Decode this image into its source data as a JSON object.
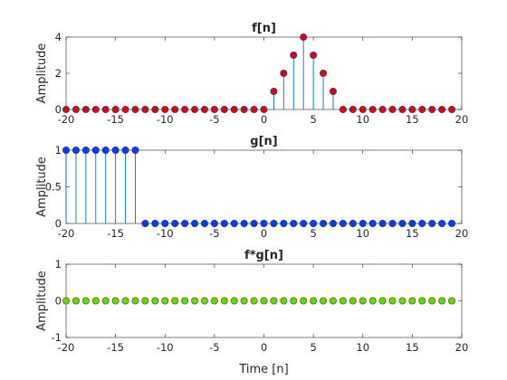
{
  "chart_data": [
    {
      "type": "stem",
      "title": "f[n]",
      "xlabel": "",
      "ylabel": "Amplitude",
      "xlim": [
        -20,
        20
      ],
      "ylim": [
        0,
        4
      ],
      "xticks": [
        "-20",
        "-15",
        "-10",
        "-5",
        "0",
        "5",
        "10",
        "15",
        "20"
      ],
      "yticks": [
        "0",
        "2",
        "4"
      ],
      "x": [
        -20,
        -19,
        -18,
        -17,
        -16,
        -15,
        -14,
        -13,
        -12,
        -11,
        -10,
        -9,
        -8,
        -7,
        -6,
        -5,
        -4,
        -3,
        -2,
        -1,
        0,
        1,
        2,
        3,
        4,
        5,
        6,
        7,
        8,
        9,
        10,
        11,
        12,
        13,
        14,
        15,
        16,
        17,
        18,
        19
      ],
      "values": [
        0,
        0,
        0,
        0,
        0,
        0,
        0,
        0,
        0,
        0,
        0,
        0,
        0,
        0,
        0,
        0,
        0,
        0,
        0,
        0,
        0,
        1,
        2,
        3,
        4,
        3,
        2,
        1,
        0,
        0,
        0,
        0,
        0,
        0,
        0,
        0,
        0,
        0,
        0,
        0
      ],
      "marker_face": "#e00000",
      "marker_edge": "#2a3a9a",
      "stem_color": "#0072bd"
    },
    {
      "type": "stem",
      "title": "g[n]",
      "xlabel": "",
      "ylabel": "Amplitude",
      "xlim": [
        -20,
        20
      ],
      "ylim": [
        0,
        1
      ],
      "xticks": [
        "-20",
        "-15",
        "-10",
        "-5",
        "0",
        "5",
        "10",
        "15",
        "20"
      ],
      "yticks": [
        "0",
        "0.5",
        "1"
      ],
      "x": [
        -20,
        -19,
        -18,
        -17,
        -16,
        -15,
        -14,
        -13,
        -12,
        -11,
        -10,
        -9,
        -8,
        -7,
        -6,
        -5,
        -4,
        -3,
        -2,
        -1,
        0,
        1,
        2,
        3,
        4,
        5,
        6,
        7,
        8,
        9,
        10,
        11,
        12,
        13,
        14,
        15,
        16,
        17,
        18,
        19
      ],
      "values": [
        1,
        1,
        1,
        1,
        1,
        1,
        1,
        1,
        0,
        0,
        0,
        0,
        0,
        0,
        0,
        0,
        0,
        0,
        0,
        0,
        0,
        0,
        0,
        0,
        0,
        0,
        0,
        0,
        0,
        0,
        0,
        0,
        0,
        0,
        0,
        0,
        0,
        0,
        0,
        0
      ],
      "marker_face": "#0a3cf0",
      "marker_edge": "#1a2a9a",
      "stem_color": "#0072bd"
    },
    {
      "type": "stem",
      "title": "f*g[n]",
      "xlabel": "Time [n]",
      "ylabel": "Amplitude",
      "xlim": [
        -20,
        20
      ],
      "ylim": [
        -1,
        1
      ],
      "xticks": [
        "-20",
        "-15",
        "-10",
        "-5",
        "0",
        "5",
        "10",
        "15",
        "20"
      ],
      "yticks": [
        "-1",
        "0",
        "1"
      ],
      "x": [
        -20,
        -19,
        -18,
        -17,
        -16,
        -15,
        -14,
        -13,
        -12,
        -11,
        -10,
        -9,
        -8,
        -7,
        -6,
        -5,
        -4,
        -3,
        -2,
        -1,
        0,
        1,
        2,
        3,
        4,
        5,
        6,
        7,
        8,
        9,
        10,
        11,
        12,
        13,
        14,
        15,
        16,
        17,
        18,
        19
      ],
      "values": [
        0,
        0,
        0,
        0,
        0,
        0,
        0,
        0,
        0,
        0,
        0,
        0,
        0,
        0,
        0,
        0,
        0,
        0,
        0,
        0,
        0,
        0,
        0,
        0,
        0,
        0,
        0,
        0,
        0,
        0,
        0,
        0,
        0,
        0,
        0,
        0,
        0,
        0,
        0,
        0
      ],
      "marker_face": "#5ae000",
      "marker_edge": "#6a5a10",
      "stem_color": "#0072bd"
    }
  ]
}
